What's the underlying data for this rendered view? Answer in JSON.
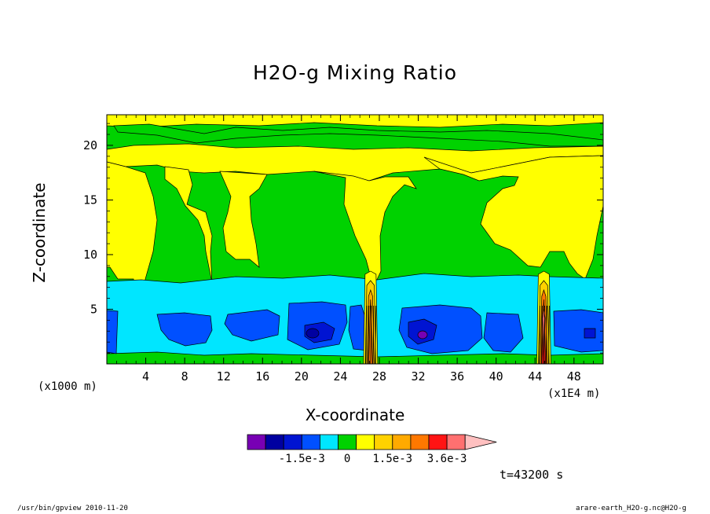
{
  "chart_data": {
    "type": "heatmap",
    "title": "H2O-g Mixing Ratio",
    "xlabel": "X-coordinate",
    "ylabel": "Z-coordinate",
    "x_unit_label": "(x1E4 m)",
    "y_unit_label": "(x1000 m)",
    "xlim": [
      0,
      51
    ],
    "ylim": [
      0,
      22.8
    ],
    "x_ticks": [
      4,
      8,
      12,
      16,
      20,
      24,
      28,
      32,
      36,
      40,
      44,
      48
    ],
    "y_ticks": [
      5,
      10,
      15,
      20
    ],
    "colorbar": {
      "colors": [
        "#7800b4",
        "#0000a0",
        "#0014d2",
        "#0050ff",
        "#00e6ff",
        "#00d200",
        "#ffff00",
        "#ffd200",
        "#ffaa00",
        "#ff7800",
        "#ff1414",
        "#ff7070",
        "#ffc0c0"
      ],
      "tick_labels": [
        "-1.5e-3",
        "0",
        "1.5e-3",
        "3.6e-3"
      ]
    },
    "regions": [
      {
        "level": "yellow",
        "description": "upper layer",
        "x_range": [
          0,
          51
        ],
        "z_range": [
          19.5,
          22.8
        ]
      },
      {
        "level": "green",
        "description": "band",
        "x_range": [
          0,
          51
        ],
        "z_range": [
          18.5,
          20.5
        ]
      },
      {
        "level": "cyan",
        "description": "lower layer",
        "x_range": [
          0,
          51
        ],
        "z_range": [
          1,
          7.5
        ]
      },
      {
        "level": "blue",
        "description": "boundary layer",
        "x_range": [
          0,
          51
        ],
        "z_range": [
          1.5,
          5
        ]
      },
      {
        "level": "orange",
        "description": "convective plume",
        "x_center": 27.1,
        "z_range": [
          1,
          8
        ]
      },
      {
        "level": "red",
        "description": "convective plume",
        "x_center": 44.9,
        "z_range": [
          1,
          8
        ]
      }
    ],
    "annotation_time": "t=43200 s"
  },
  "footer": {
    "left": "/usr/bin/gpview  2010-11-20",
    "right": "arare-earth_H2O-g.nc@H2O-g"
  }
}
